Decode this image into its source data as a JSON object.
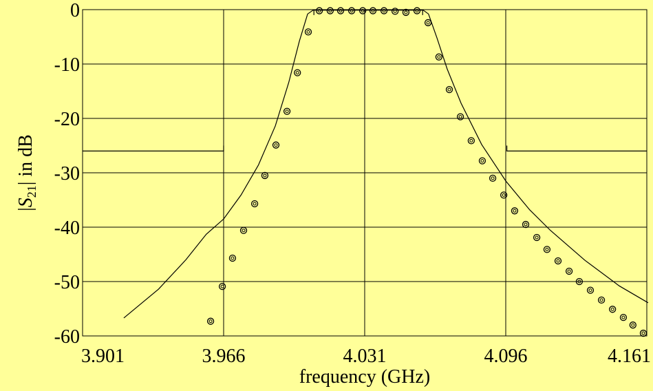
{
  "chart_data": {
    "type": "line",
    "xlabel": "frequency (GHz)",
    "ylabel_parts": [
      "|",
      "S",
      "21",
      "|  in dB"
    ],
    "xlim": [
      3.901,
      4.161
    ],
    "ylim": [
      -60,
      0
    ],
    "xticks": [
      3.901,
      3.966,
      4.031,
      4.096,
      4.161
    ],
    "yticks": [
      0,
      -10,
      -20,
      -30,
      -40,
      -50,
      -60
    ],
    "grid": true,
    "background": "#ffff99",
    "series": [
      {
        "style": "line",
        "color": "#000000",
        "x": [
          3.92,
          3.936,
          3.9486,
          3.958,
          3.966,
          3.974,
          3.982,
          3.9898,
          3.996,
          4.0009,
          4.0047,
          4.0072,
          4.058,
          4.0604,
          4.0643,
          4.069,
          4.0754,
          4.0849,
          4.096,
          4.107,
          4.1166,
          4.1325,
          4.1483,
          4.1616
        ],
        "values": [
          -56.7,
          -51.4,
          -46.0,
          -41.3,
          -38.5,
          -34.1,
          -28.6,
          -21.4,
          -13.4,
          -5.8,
          -0.8,
          -0.1,
          -0.1,
          -0.8,
          -5.2,
          -10.9,
          -17.2,
          -24.8,
          -31.5,
          -36.8,
          -40.6,
          -46.1,
          -50.8,
          -53.9
        ]
      },
      {
        "style": "markers",
        "color": "#000000",
        "x": [
          3.96,
          3.9654,
          3.9701,
          3.9752,
          3.9803,
          3.985,
          3.9901,
          3.9952,
          4.0,
          4.005,
          4.0101,
          4.0151,
          4.0199,
          4.025,
          4.0301,
          4.0348,
          4.0399,
          4.045,
          4.05,
          4.0551,
          4.0602,
          4.0652,
          4.07,
          4.0751,
          4.0801,
          4.0852,
          4.09,
          4.0951,
          4.1001,
          4.1052,
          4.1103,
          4.115,
          4.1201,
          4.1252,
          4.1299,
          4.135,
          4.1401,
          4.1452,
          4.1502,
          4.1546,
          4.1594
        ],
        "values": [
          -57.3,
          -50.9,
          -45.7,
          -40.6,
          -35.7,
          -30.5,
          -24.9,
          -18.7,
          -11.6,
          -4.1,
          -0.2,
          -0.2,
          -0.2,
          -0.2,
          -0.2,
          -0.2,
          -0.2,
          -0.3,
          -0.5,
          -0.2,
          -2.4,
          -8.7,
          -14.7,
          -19.7,
          -24.1,
          -27.8,
          -31.0,
          -34.1,
          -37.0,
          -39.5,
          -41.9,
          -44.1,
          -46.2,
          -48.1,
          -50.0,
          -51.6,
          -53.4,
          -55.1,
          -56.6,
          -58.0,
          -59.5
        ]
      },
      {
        "style": "line",
        "color": "#000000",
        "x": [
          3.901,
          3.966,
          3.966
        ],
        "values": [
          -26,
          -26,
          -25
        ]
      },
      {
        "style": "line",
        "color": "#000000",
        "x": [
          4.0965,
          4.0965,
          4.161
        ],
        "values": [
          -25,
          -26,
          -26
        ]
      },
      {
        "style": "line",
        "color": "#000000",
        "x": [
          4.0076,
          4.0076
        ],
        "values": [
          -1,
          0
        ]
      },
      {
        "style": "line",
        "color": "#000000",
        "x": [
          4.0577,
          4.0577
        ],
        "values": [
          -1,
          0
        ]
      }
    ]
  }
}
